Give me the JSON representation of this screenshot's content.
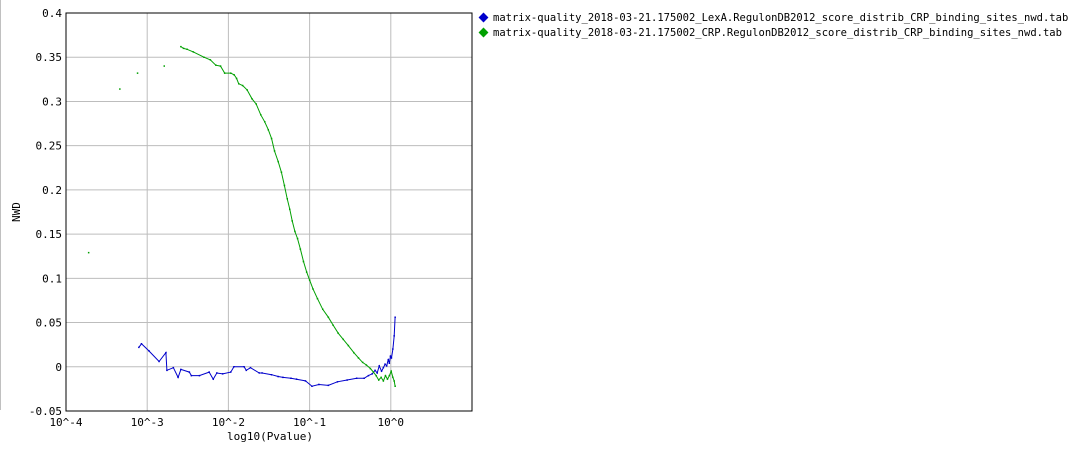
{
  "chart_data": {
    "type": "line",
    "title": "",
    "xlabel": "log10(Pvalue)",
    "ylabel": "NWD",
    "x_scale": "log",
    "xlim": [
      0.0001,
      10
    ],
    "ylim": [
      -0.05,
      0.4
    ],
    "grid": true,
    "legend_position": "top-right",
    "x_ticks": [
      {
        "value": 0.0001,
        "label": "10^-4"
      },
      {
        "value": 0.001,
        "label": "10^-3"
      },
      {
        "value": 0.01,
        "label": "10^-2"
      },
      {
        "value": 0.1,
        "label": "10^-1"
      },
      {
        "value": 1,
        "label": "10^0"
      }
    ],
    "y_ticks": [
      {
        "value": -0.05,
        "label": "-0.05"
      },
      {
        "value": 0,
        "label": "0"
      },
      {
        "value": 0.05,
        "label": "0.05"
      },
      {
        "value": 0.1,
        "label": "0.1"
      },
      {
        "value": 0.15,
        "label": "0.15"
      },
      {
        "value": 0.2,
        "label": "0.2"
      },
      {
        "value": 0.25,
        "label": "0.25"
      },
      {
        "value": 0.3,
        "label": "0.3"
      },
      {
        "value": 0.35,
        "label": "0.35"
      },
      {
        "value": 0.4,
        "label": "0.4"
      }
    ],
    "series": [
      {
        "name": "matrix-quality_2018-03-21.175002_LexA.RegulonDB2012_score_distrib_CRP_binding_sites_nwd.tab",
        "color": "#0000cc",
        "points": [
          [
            0.00079,
            0.022
          ],
          [
            0.00085,
            0.026
          ],
          [
            0.00105,
            0.018
          ],
          [
            0.0014,
            0.006
          ],
          [
            0.0017,
            0.016
          ],
          [
            0.00175,
            -0.004
          ],
          [
            0.0021,
            -0.001
          ],
          [
            0.0024,
            -0.012
          ],
          [
            0.0026,
            -0.003
          ],
          [
            0.0033,
            -0.006
          ],
          [
            0.0035,
            -0.01
          ],
          [
            0.0044,
            -0.01
          ],
          [
            0.0058,
            -0.006
          ],
          [
            0.0065,
            -0.014
          ],
          [
            0.0072,
            -0.007
          ],
          [
            0.0085,
            -0.008
          ],
          [
            0.0107,
            -0.006
          ],
          [
            0.0117,
            -0.0
          ],
          [
            0.0156,
            0.0
          ],
          [
            0.0166,
            -0.004
          ],
          [
            0.0187,
            -0.001
          ],
          [
            0.024,
            -0.007
          ],
          [
            0.026,
            -0.007
          ],
          [
            0.034,
            -0.009
          ],
          [
            0.041,
            -0.011
          ],
          [
            0.047,
            -0.012
          ],
          [
            0.059,
            -0.013
          ],
          [
            0.069,
            -0.014
          ],
          [
            0.089,
            -0.016
          ],
          [
            0.107,
            -0.022
          ],
          [
            0.13,
            -0.02
          ],
          [
            0.17,
            -0.021
          ],
          [
            0.22,
            -0.017
          ],
          [
            0.29,
            -0.015
          ],
          [
            0.38,
            -0.013
          ],
          [
            0.47,
            -0.013
          ],
          [
            0.53,
            -0.01
          ],
          [
            0.59,
            -0.008
          ],
          [
            0.64,
            -0.004
          ],
          [
            0.68,
            -0.007
          ],
          [
            0.72,
            0.001
          ],
          [
            0.77,
            -0.005
          ],
          [
            0.81,
            -0.001
          ],
          [
            0.85,
            0.003
          ],
          [
            0.89,
            0.001
          ],
          [
            0.93,
            0.008
          ],
          [
            0.96,
            0.004
          ],
          [
            0.99,
            0.012
          ],
          [
            1.02,
            0.01
          ],
          [
            1.06,
            0.02
          ],
          [
            1.1,
            0.035
          ],
          [
            1.13,
            0.056
          ]
        ]
      },
      {
        "name": "matrix-quality_2018-03-21.175002_CRP.RegulonDB2012_score_distrib_CRP_binding_sites_nwd.tab",
        "color": "#00a000",
        "points": [
          [
            0.00019,
            0.129
          ],
          [
            0.00046,
            0.314
          ],
          [
            0.00076,
            0.332
          ],
          [
            0.00162,
            0.34
          ],
          [
            0.0026,
            0.362
          ],
          [
            0.0028,
            0.36
          ],
          [
            0.0031,
            0.359
          ],
          [
            0.0037,
            0.356
          ],
          [
            0.005,
            0.35
          ],
          [
            0.006,
            0.347
          ],
          [
            0.007,
            0.341
          ],
          [
            0.008,
            0.34
          ],
          [
            0.009,
            0.332
          ],
          [
            0.0107,
            0.332
          ],
          [
            0.0118,
            0.33
          ],
          [
            0.0126,
            0.326
          ],
          [
            0.0134,
            0.32
          ],
          [
            0.015,
            0.318
          ],
          [
            0.017,
            0.313
          ],
          [
            0.0195,
            0.303
          ],
          [
            0.022,
            0.297
          ],
          [
            0.025,
            0.285
          ],
          [
            0.028,
            0.277
          ],
          [
            0.031,
            0.268
          ],
          [
            0.034,
            0.258
          ],
          [
            0.037,
            0.244
          ],
          [
            0.041,
            0.232
          ],
          [
            0.045,
            0.22
          ],
          [
            0.049,
            0.205
          ],
          [
            0.053,
            0.19
          ],
          [
            0.057,
            0.178
          ],
          [
            0.061,
            0.165
          ],
          [
            0.066,
            0.153
          ],
          [
            0.071,
            0.145
          ],
          [
            0.077,
            0.133
          ],
          [
            0.084,
            0.119
          ],
          [
            0.092,
            0.107
          ],
          [
            0.1,
            0.098
          ],
          [
            0.11,
            0.088
          ],
          [
            0.125,
            0.077
          ],
          [
            0.145,
            0.065
          ],
          [
            0.17,
            0.056
          ],
          [
            0.195,
            0.047
          ],
          [
            0.225,
            0.038
          ],
          [
            0.26,
            0.031
          ],
          [
            0.3,
            0.024
          ],
          [
            0.35,
            0.016
          ],
          [
            0.4,
            0.01
          ],
          [
            0.45,
            0.005
          ],
          [
            0.5,
            0.002
          ],
          [
            0.56,
            -0.002
          ],
          [
            0.61,
            -0.006
          ],
          [
            0.66,
            -0.01
          ],
          [
            0.71,
            -0.015
          ],
          [
            0.76,
            -0.012
          ],
          [
            0.81,
            -0.016
          ],
          [
            0.86,
            -0.01
          ],
          [
            0.91,
            -0.014
          ],
          [
            0.96,
            -0.01
          ],
          [
            1.01,
            -0.005
          ],
          [
            1.06,
            -0.012
          ],
          [
            1.1,
            -0.016
          ],
          [
            1.13,
            -0.022
          ]
        ]
      }
    ]
  }
}
